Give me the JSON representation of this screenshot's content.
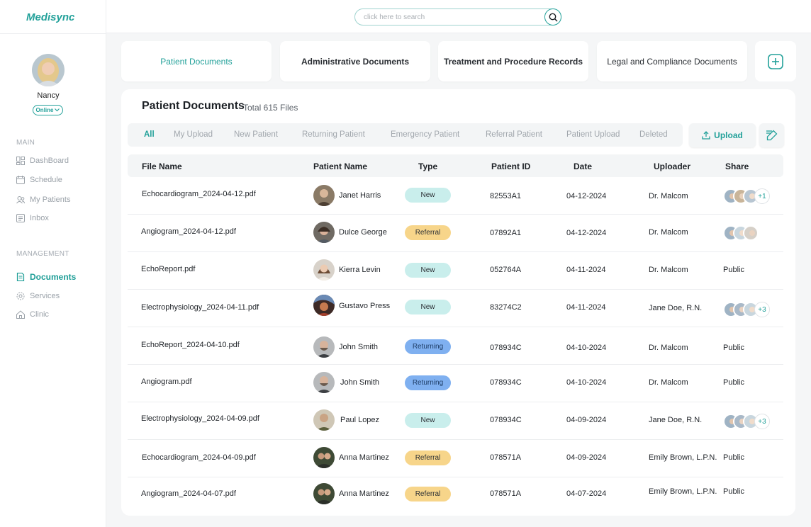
{
  "app": {
    "logo": "Medisync"
  },
  "user": {
    "name": "Nancy",
    "status": "Online"
  },
  "sidebar": {
    "main_title": "MAIN",
    "main_items": [
      {
        "label": "DashBoard",
        "icon": "dashboard-icon"
      },
      {
        "label": "Schedule",
        "icon": "calendar-icon"
      },
      {
        "label": "My Patients",
        "icon": "patients-icon"
      },
      {
        "label": "Inbox",
        "icon": "inbox-icon"
      }
    ],
    "management_title": "MANAGEMENT",
    "management_items": [
      {
        "label": "Documents",
        "icon": "document-icon",
        "active": true
      },
      {
        "label": "Services",
        "icon": "gear-icon"
      },
      {
        "label": "Clinic",
        "icon": "home-icon"
      }
    ]
  },
  "search": {
    "placeholder": "click here to search",
    "value": ""
  },
  "categories": [
    {
      "label": "Patient Documents",
      "active": true
    },
    {
      "label": "Administrative Documents"
    },
    {
      "label": "Treatment and Procedure Records"
    },
    {
      "label": "Legal and Compliance Documents"
    }
  ],
  "main": {
    "title": "Patient Documents",
    "subtitle": "Total 615 Files",
    "filters": [
      "All",
      "My Upload",
      "New Patient",
      "Returning Patient",
      "Emergency Patient",
      "Referral Patient",
      "Patient Upload",
      "Deleted"
    ],
    "active_filter": "All",
    "upload_label": "Upload"
  },
  "table": {
    "headers": [
      "File Name",
      "Patient Name",
      "Type",
      "Patient ID",
      "Date",
      "Uploader",
      "Share"
    ],
    "rows": [
      {
        "file": "Echocardiogram_2024-04-12.pdf",
        "patient": "Janet Harris",
        "type": "New",
        "id": "82553A1",
        "date": "04-12-2024",
        "uploader": "Dr. Malcom",
        "share": "",
        "share_more": "+1"
      },
      {
        "file": "Angiogram_2024-04-12.pdf",
        "patient": "Dulce George",
        "type": "Referral",
        "id": "07892A1",
        "date": "04-12-2024",
        "uploader": "Dr. Malcom",
        "share": "",
        "share_more": ""
      },
      {
        "file": "EchoReport.pdf",
        "patient": "Kierra Levin",
        "type": "New",
        "id": "052764A",
        "date": "04-11-2024",
        "uploader": "Dr. Malcom",
        "share": "Public",
        "share_more": ""
      },
      {
        "file": "Electrophysiology_2024-04-11.pdf",
        "patient": "Gustavo Press",
        "type": "New",
        "id": "83274C2",
        "date": "04-11-2024",
        "uploader": "Jane Doe, R.N.",
        "share": "",
        "share_more": "+3"
      },
      {
        "file": "EchoReport_2024-04-10.pdf",
        "patient": "John Smith",
        "type": "Returning",
        "id": "078934C",
        "date": "04-10-2024",
        "uploader": "Dr. Malcom",
        "share": "Public",
        "share_more": ""
      },
      {
        "file": "Angiogram.pdf",
        "patient": "John Smith",
        "type": "Returning",
        "id": "078934C",
        "date": "04-10-2024",
        "uploader": "Dr. Malcom",
        "share": "Public",
        "share_more": ""
      },
      {
        "file": "Electrophysiology_2024-04-09.pdf",
        "patient": "Paul Lopez",
        "type": "New",
        "id": "078934C",
        "date": "04-09-2024",
        "uploader": "Jane Doe, R.N.",
        "share": "",
        "share_more": "+3"
      },
      {
        "file": "Echocardiogram_2024-04-09.pdf",
        "patient": "Anna Martinez",
        "type": "Referral",
        "id": "078571A",
        "date": "04-09-2024",
        "uploader": "Emily Brown, L.P.N.",
        "share": "Public",
        "share_more": ""
      },
      {
        "file": "Angiogram_2024-04-07.pdf",
        "patient": "Anna Martinez",
        "type": "Referral",
        "id": "078571A",
        "date": "04-07-2024",
        "uploader": "Emily Brown, L.P.N.",
        "share": "Public",
        "share_more": ""
      }
    ]
  },
  "colors": {
    "accent": "#23a19a",
    "new": "#c9eeec",
    "referral": "#f7d58a",
    "returning": "#7fb0f0"
  }
}
